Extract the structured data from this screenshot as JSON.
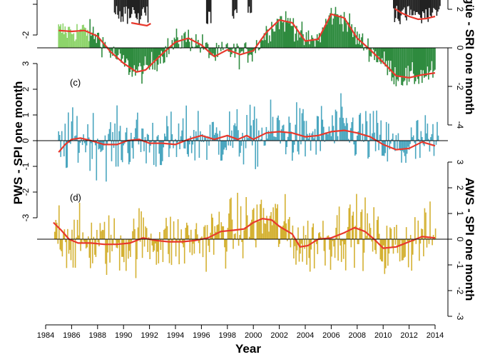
{
  "chart_data": {
    "type": "bar",
    "xlabel": "Year",
    "x_ticks": [
      "1984",
      "1986",
      "1988",
      "1990",
      "1992",
      "1994",
      "1996",
      "1998",
      "2000",
      "2002",
      "2004",
      "2006",
      "2008",
      "2010",
      "2012",
      "2014"
    ],
    "xlim": [
      1984,
      2014.6
    ],
    "panels": [
      {
        "id": "top-partial",
        "ylabel": "",
        "side": "right",
        "visible_ticks": [
          "2"
        ],
        "series": [
          {
            "name": "",
            "type": "bar",
            "color": "#222222",
            "segments": [
              [
                1989.3,
                1991.9
              ],
              [
                1996.4,
                1996.8
              ],
              [
                1998.4,
                1998.8
              ],
              [
                1999.6,
                1999.9
              ],
              [
                2010.8,
                2014.4
              ]
            ]
          },
          {
            "name": "",
            "type": "line",
            "color": "#e8382c",
            "points": [
              [
                1990.6,
                1.0
              ],
              [
                1991.2,
                0.8
              ],
              [
                1991.8,
                0.6
              ],
              [
                1992.1,
                0.9
              ],
              [
                2010.9,
                3.0
              ],
              [
                2011.4,
                2.4
              ],
              [
                2012.0,
                1.9
              ],
              [
                2012.7,
                1.5
              ],
              [
                2013.3,
                1.6
              ],
              [
                2014.0,
                1.9
              ]
            ]
          }
        ]
      },
      {
        "id": "b",
        "ylabel": "argüe - SRI one month",
        "side": "right",
        "yticks": [
          "0",
          "-2",
          "-4"
        ],
        "left_visible_ticks": [
          "-2"
        ],
        "ylim": [
          -4,
          3
        ],
        "series": [
          {
            "name": "",
            "type": "bar",
            "color": "#2e8b3e",
            "light_color": "#8dd46a",
            "light_until": 1987.4
          },
          {
            "name": "",
            "type": "line",
            "color": "#e8382c",
            "points": [
              [
                1985.0,
                0.9
              ],
              [
                1986.0,
                0.85
              ],
              [
                1987.0,
                0.9
              ],
              [
                1988.0,
                0.6
              ],
              [
                1989.0,
                -0.2
              ],
              [
                1990.0,
                -0.8
              ],
              [
                1991.0,
                -1.25
              ],
              [
                1991.7,
                -1.15
              ],
              [
                1993.0,
                -0.3
              ],
              [
                1994.0,
                0.3
              ],
              [
                1995.0,
                0.5
              ],
              [
                1996.0,
                0.15
              ],
              [
                1997.0,
                -0.45
              ],
              [
                1998.0,
                -0.1
              ],
              [
                1999.0,
                -0.35
              ],
              [
                2000.0,
                -0.15
              ],
              [
                2001.0,
                0.8
              ],
              [
                2002.0,
                1.45
              ],
              [
                2003.0,
                1.3
              ],
              [
                2004.0,
                0.35
              ],
              [
                2005.0,
                0.45
              ],
              [
                2006.0,
                1.75
              ],
              [
                2007.0,
                1.55
              ],
              [
                2008.0,
                0.5
              ],
              [
                2009.0,
                -0.1
              ],
              [
                2010.0,
                -0.75
              ],
              [
                2011.0,
                -1.45
              ],
              [
                2012.0,
                -1.55
              ],
              [
                2013.0,
                -1.4
              ],
              [
                2014.0,
                -1.3
              ]
            ]
          }
        ]
      },
      {
        "id": "c",
        "tag": "(c)",
        "ylabel": "PWS - SPI one month",
        "side": "left",
        "yticks": [
          "3",
          "2",
          "1",
          "0",
          "-1",
          "-2",
          "-3"
        ],
        "ylim": [
          -3,
          3
        ],
        "series": [
          {
            "name": "",
            "type": "bar",
            "color": "#4aa6bf"
          },
          {
            "name": "",
            "type": "line",
            "color": "#e8382c",
            "points": [
              [
                1985.0,
                -0.45
              ],
              [
                1985.5,
                -0.15
              ],
              [
                1986.0,
                0.05
              ],
              [
                1986.7,
                0.1
              ],
              [
                1987.5,
                0.0
              ],
              [
                1988.5,
                -0.15
              ],
              [
                1989.5,
                -0.15
              ],
              [
                1990.3,
                0.0
              ],
              [
                1991.2,
                0.05
              ],
              [
                1992.0,
                -0.1
              ],
              [
                1993.0,
                -0.1
              ],
              [
                1994.0,
                -0.15
              ],
              [
                1995.0,
                0.05
              ],
              [
                1996.0,
                0.2
              ],
              [
                1997.0,
                0.05
              ],
              [
                1998.0,
                0.2
              ],
              [
                1998.8,
                0.05
              ],
              [
                1999.5,
                0.2
              ],
              [
                2000.0,
                0.05
              ],
              [
                2001.0,
                0.3
              ],
              [
                2002.0,
                0.35
              ],
              [
                2003.0,
                0.3
              ],
              [
                2004.0,
                0.15
              ],
              [
                2005.0,
                0.2
              ],
              [
                2006.0,
                0.35
              ],
              [
                2007.0,
                0.4
              ],
              [
                2008.0,
                0.3
              ],
              [
                2009.0,
                0.15
              ],
              [
                2010.0,
                -0.15
              ],
              [
                2011.0,
                -0.35
              ],
              [
                2012.0,
                -0.3
              ],
              [
                2013.0,
                -0.05
              ],
              [
                2014.0,
                -0.2
              ]
            ]
          }
        ]
      },
      {
        "id": "d",
        "tag": "(d)",
        "ylabel": "AWS - SPI one month",
        "side": "right",
        "yticks": [
          "3",
          "2",
          "1",
          "0",
          "-1",
          "-2",
          "-3"
        ],
        "ylim": [
          -3,
          3
        ],
        "series": [
          {
            "name": "",
            "type": "bar",
            "color": "#d4b132"
          },
          {
            "name": "",
            "type": "line",
            "color": "#e8382c",
            "points": [
              [
                1984.6,
                0.65
              ],
              [
                1985.2,
                0.35
              ],
              [
                1985.8,
                0.0
              ],
              [
                1986.5,
                -0.15
              ],
              [
                1987.5,
                -0.15
              ],
              [
                1988.5,
                -0.2
              ],
              [
                1989.5,
                -0.2
              ],
              [
                1990.5,
                -0.15
              ],
              [
                1991.5,
                0.05
              ],
              [
                1992.5,
                -0.05
              ],
              [
                1993.5,
                -0.1
              ],
              [
                1994.5,
                -0.1
              ],
              [
                1995.5,
                -0.05
              ],
              [
                1996.5,
                0.05
              ],
              [
                1997.5,
                0.3
              ],
              [
                1998.5,
                0.35
              ],
              [
                1999.3,
                0.4
              ],
              [
                2000.0,
                0.65
              ],
              [
                2000.7,
                0.8
              ],
              [
                2001.4,
                0.75
              ],
              [
                2002.0,
                0.5
              ],
              [
                2003.0,
                0.2
              ],
              [
                2003.6,
                -0.3
              ],
              [
                2004.2,
                -0.25
              ],
              [
                2005.0,
                0.0
              ],
              [
                2006.0,
                0.05
              ],
              [
                2007.0,
                0.25
              ],
              [
                2007.8,
                0.45
              ],
              [
                2008.6,
                0.3
              ],
              [
                2009.3,
                0.0
              ],
              [
                2010.0,
                -0.35
              ],
              [
                2011.0,
                -0.3
              ],
              [
                2012.0,
                -0.1
              ],
              [
                2013.0,
                0.1
              ],
              [
                2014.0,
                0.05
              ]
            ]
          }
        ]
      }
    ]
  }
}
